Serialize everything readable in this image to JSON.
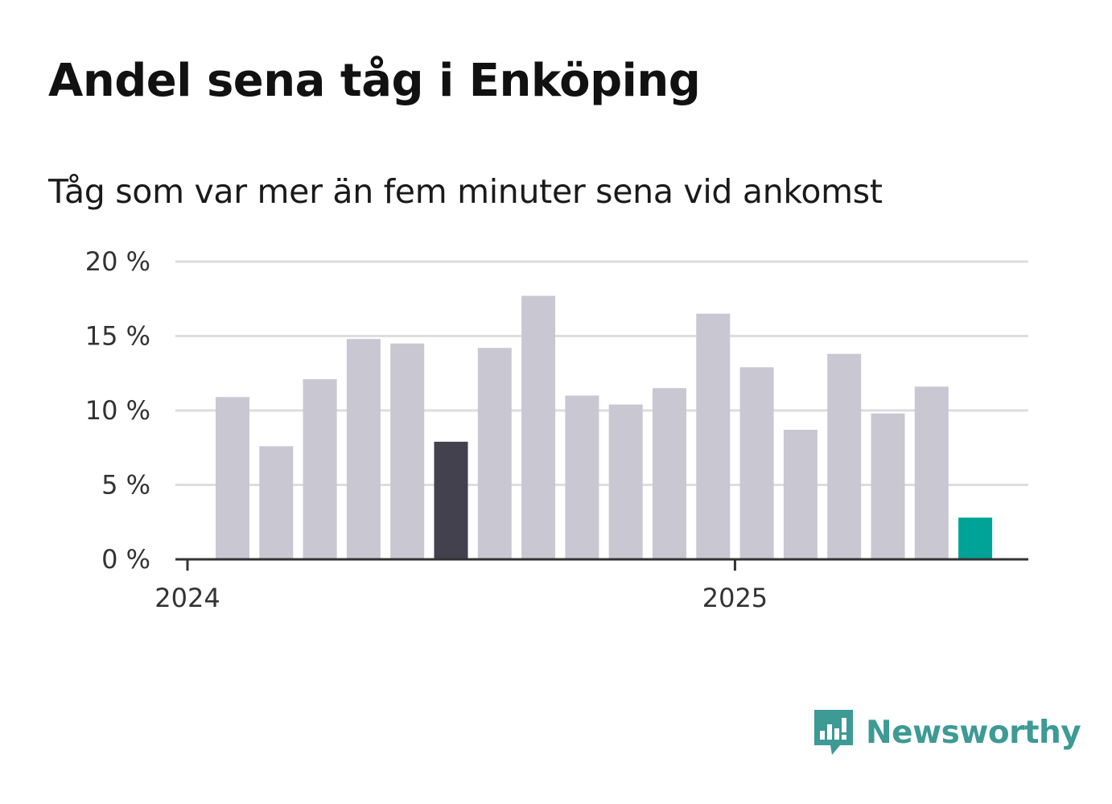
{
  "header": {
    "title": "Andel sena tåg i Enköping",
    "subtitle": "Tåg som var mer än fem minuter sena vid ankomst"
  },
  "chart_data": {
    "type": "bar",
    "categories": [
      "2024-01",
      "2024-02",
      "2024-03",
      "2024-04",
      "2024-05",
      "2024-06",
      "2024-07",
      "2024-08",
      "2024-09",
      "2024-10",
      "2024-11",
      "2024-12",
      "2025-01",
      "2025-02",
      "2025-03",
      "2025-04",
      "2025-05",
      "2025-06"
    ],
    "values": [
      10.9,
      7.6,
      12.1,
      14.8,
      14.5,
      7.9,
      14.2,
      17.7,
      11.0,
      10.4,
      11.5,
      16.5,
      12.9,
      8.7,
      13.8,
      9.8,
      11.6,
      2.8
    ],
    "highlight": {
      "dark": [
        5
      ],
      "accent": [
        17
      ]
    },
    "colors": {
      "bar": "#c8c7d2",
      "dark": "#42414d",
      "accent": "#00a397",
      "grid": "#dddddd",
      "axis": "#333333"
    },
    "y_ticks": [
      "0 %",
      "5 %",
      "10 %",
      "15 %",
      "20 %"
    ],
    "y_tick_values": [
      0,
      5,
      10,
      15,
      20
    ],
    "x_tick_labels": [
      "2024",
      "2025"
    ],
    "x_tick_categories": [
      0,
      12
    ],
    "ylim": [
      0,
      20
    ],
    "grid": true,
    "legend": "none",
    "title": "Andel sena tåg i Enköping",
    "subtitle": "Tåg som var mer än fem minuter sena vid ankomst",
    "xlabel": "",
    "ylabel": ""
  },
  "branding": {
    "logo_text": "Newsworthy",
    "logo_icon": "bar-chart-bubble-icon",
    "logo_color": "#3d9a95"
  }
}
